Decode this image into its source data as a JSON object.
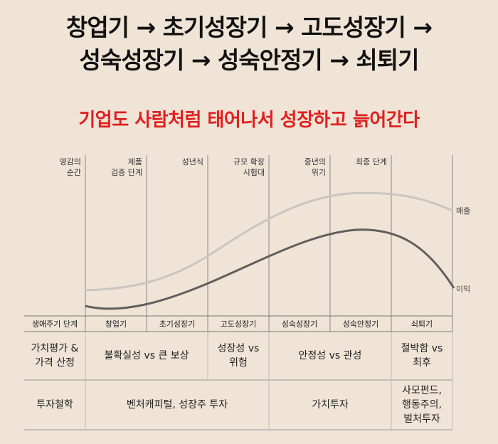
{
  "title": {
    "line1": "창업기 → 초기성장기 → 고도성장기 →",
    "line2": "성숙성장기 → 성숙안정기 → 쇠퇴기"
  },
  "subtitle": "기업도 사람처럼 태어나서 성장하고 늙어간다",
  "stage_labels": [
    "영감의\n순간",
    "제품\n검증 단계",
    "성년식",
    "규모 확장\n시험대",
    "중년의\n위기",
    "최종 단계"
  ],
  "series": [
    {
      "name": "매출",
      "color": "#c9c6c2"
    },
    {
      "name": "이익",
      "color": "#5f5f5f"
    }
  ],
  "lifecycle": {
    "header": "생애주기 단계",
    "stages": [
      "창업기",
      "초기성장기",
      "고도성장기",
      "성숙성장기",
      "성숙안정기",
      "쇠퇴기"
    ]
  },
  "valuation": {
    "header": "가치평가 &\n가격 산정",
    "cells": [
      "불확실성 vs 큰 보상",
      "성장성 vs\n위험",
      "안정성 vs 관성",
      "절박함 vs\n최후"
    ]
  },
  "philosophy": {
    "header": "투자철학",
    "cells": [
      "벤처캐피털, 성장주 투자",
      "가치투자",
      "사모펀드,\n행동주의,\n벌처투자"
    ]
  }
}
